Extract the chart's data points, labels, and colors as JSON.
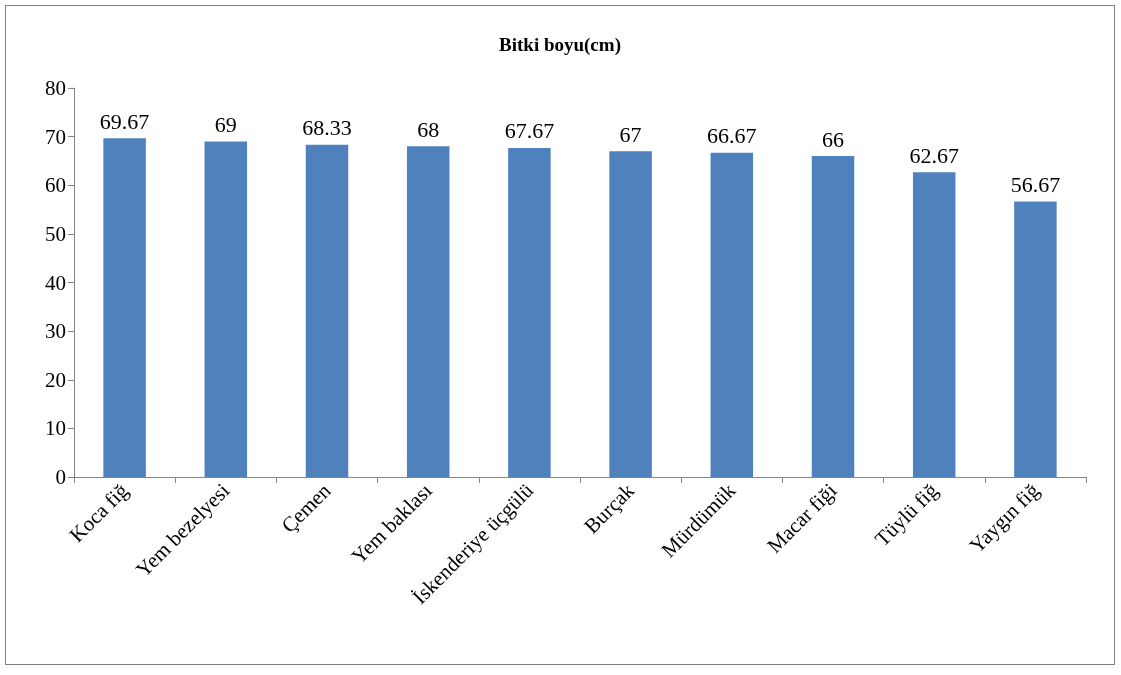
{
  "chart_data": {
    "type": "bar",
    "title": "Bitki boyu(cm)",
    "categories": [
      "Koca fiğ",
      "Yem bezelyesi",
      "Çemen",
      "Yem baklası",
      "İskenderiye üçgülü",
      "Burçak",
      "Mürdümük",
      "Macar fiği",
      "Tüylü fiğ",
      "Yaygın fiğ"
    ],
    "values": [
      69.67,
      69,
      68.33,
      68,
      67.67,
      67,
      66.67,
      66,
      62.67,
      56.67
    ],
    "color": "#4f81bd",
    "ylim": [
      0,
      80
    ],
    "yticks": [
      0,
      10,
      20,
      30,
      40,
      50,
      60,
      70,
      80
    ],
    "grid": false,
    "data_labels": true
  }
}
